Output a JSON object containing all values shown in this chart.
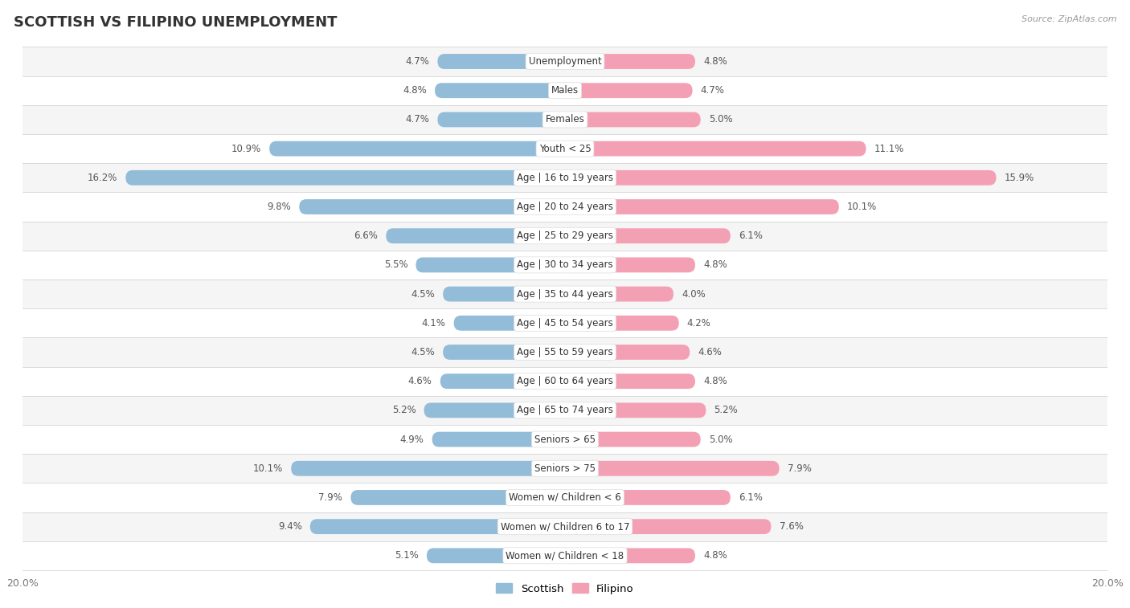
{
  "title": "SCOTTISH VS FILIPINO UNEMPLOYMENT",
  "source": "Source: ZipAtlas.com",
  "categories": [
    "Unemployment",
    "Males",
    "Females",
    "Youth < 25",
    "Age | 16 to 19 years",
    "Age | 20 to 24 years",
    "Age | 25 to 29 years",
    "Age | 30 to 34 years",
    "Age | 35 to 44 years",
    "Age | 45 to 54 years",
    "Age | 55 to 59 years",
    "Age | 60 to 64 years",
    "Age | 65 to 74 years",
    "Seniors > 65",
    "Seniors > 75",
    "Women w/ Children < 6",
    "Women w/ Children 6 to 17",
    "Women w/ Children < 18"
  ],
  "scottish": [
    4.7,
    4.8,
    4.7,
    10.9,
    16.2,
    9.8,
    6.6,
    5.5,
    4.5,
    4.1,
    4.5,
    4.6,
    5.2,
    4.9,
    10.1,
    7.9,
    9.4,
    5.1
  ],
  "filipino": [
    4.8,
    4.7,
    5.0,
    11.1,
    15.9,
    10.1,
    6.1,
    4.8,
    4.0,
    4.2,
    4.6,
    4.8,
    5.2,
    5.0,
    7.9,
    6.1,
    7.6,
    4.8
  ],
  "scottish_color": "#92bcd8",
  "filipino_color": "#f4a0b4",
  "axis_max": 20.0,
  "row_color_odd": "#f5f5f5",
  "row_color_even": "#ffffff",
  "title_fontsize": 13,
  "label_fontsize": 8.5,
  "value_fontsize": 8.5,
  "tick_fontsize": 9
}
